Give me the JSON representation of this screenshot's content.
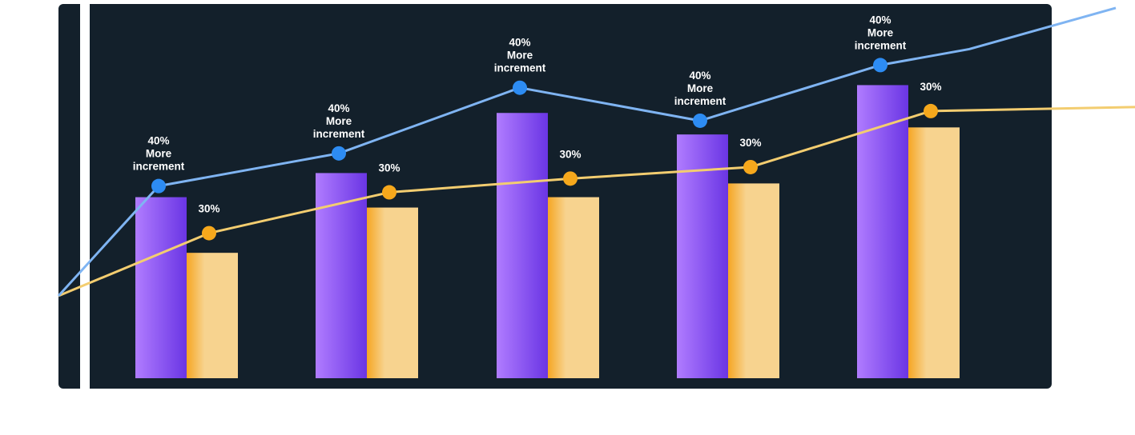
{
  "colors": {
    "panel": "#13202b",
    "divider": "#ffffff",
    "purple_light": "#b07cff",
    "purple_dark": "#6a35e4",
    "orange_dark": "#f6a623",
    "orange_light": "#f7d38f",
    "blue_line": "#7fb4f2",
    "blue_dot": "#2d8cf3",
    "yellow_line": "#f3cd70",
    "orange_dot": "#f6a81c",
    "label": "#ffffff"
  },
  "chart_data": {
    "type": "bar",
    "ylim": [
      0,
      100
    ],
    "groups": [
      {
        "purple": 48.8,
        "orange": 33.8,
        "blue": 51.8,
        "yellow": 39.1,
        "blue_label": "40%\nMore\nincrement",
        "orange_label": "30%"
      },
      {
        "purple": 55.3,
        "orange": 46.0,
        "blue": 60.6,
        "yellow": 50.1,
        "blue_label": "40%\nMore\nincrement",
        "orange_label": "30%"
      },
      {
        "purple": 71.5,
        "orange": 48.8,
        "blue": 78.3,
        "yellow": 53.8,
        "blue_label": "40%\nMore\nincrement",
        "orange_label": "30%"
      },
      {
        "purple": 65.7,
        "orange": 52.5,
        "blue": 69.4,
        "yellow": 56.9,
        "blue_label": "40%\nMore\nincrement",
        "orange_label": "30%"
      },
      {
        "purple": 79.0,
        "orange": 67.6,
        "blue": 84.4,
        "yellow": 72.0,
        "blue_label": "40%\nMore\nincrement",
        "orange_label": "30%"
      }
    ],
    "blue_line_ends": {
      "start": 22.2,
      "mid_after_last": 88.7,
      "end": 99.8
    },
    "yellow_line_ends": {
      "start": 22.2,
      "end": 73.1
    }
  }
}
